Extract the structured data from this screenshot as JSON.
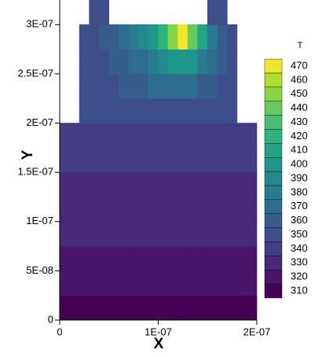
{
  "chart_data": {
    "type": "contour",
    "x_label": "X",
    "y_label": "Y",
    "colorbar_title": "T",
    "xlim": [
      0,
      2e-07
    ],
    "ylim": [
      0,
      3.25e-07
    ],
    "xticks": [
      0,
      {
        "value": 1e-07,
        "label": "1E-07"
      },
      {
        "value": 2e-07,
        "label": "2E-07"
      }
    ],
    "yticks": [
      0,
      {
        "value": 5e-08,
        "label": "5E-08"
      },
      {
        "value": 1e-07,
        "label": "1E-07"
      },
      {
        "value": 1.5e-07,
        "label": "1.5E-07"
      },
      {
        "value": 2e-07,
        "label": "2E-07"
      },
      {
        "value": 2.5e-07,
        "label": "2.5E-07"
      },
      {
        "value": 3e-07,
        "label": "3E-07"
      }
    ],
    "levels": [
      310,
      320,
      330,
      340,
      350,
      360,
      370,
      380,
      390,
      400,
      410,
      420,
      430,
      440,
      450,
      460,
      470
    ],
    "colors": [
      "#440154",
      "#481769",
      "#472a7a",
      "#433d84",
      "#3d4e8a",
      "#355e8d",
      "#2e6d8e",
      "#297b8e",
      "#23898e",
      "#1f978b",
      "#21a585",
      "#2eb37c",
      "#46c06f",
      "#65cb5e",
      "#89d548",
      "#b0dd2f",
      "#f2e62a"
    ],
    "x_edges": [
      0,
      1e-08,
      2e-08,
      3e-08,
      4e-08,
      5e-08,
      6e-08,
      7e-08,
      8e-08,
      9e-08,
      1e-07,
      1.1e-07,
      1.2e-07,
      1.3e-07,
      1.4e-07,
      1.5e-07,
      1.6e-07,
      1.7e-07,
      1.8e-07,
      1.9e-07,
      2e-07
    ],
    "y_edges": [
      0,
      2.5e-08,
      5e-08,
      7.5e-08,
      1e-07,
      1.25e-07,
      1.5e-07,
      1.75e-07,
      2e-07,
      2.25e-07,
      2.5e-07,
      2.75e-07,
      3e-07,
      3.25e-07
    ],
    "z": [
      [
        312,
        312,
        312,
        312,
        312,
        312,
        312,
        312,
        312,
        312,
        312,
        312,
        312,
        312,
        312,
        312,
        312,
        312,
        312,
        312
      ],
      [
        320,
        320,
        320,
        320,
        320,
        320,
        320,
        320,
        320,
        320,
        320,
        320,
        320,
        320,
        320,
        320,
        320,
        320,
        320,
        320
      ],
      [
        322,
        322,
        322,
        322,
        322,
        322,
        322,
        322,
        322,
        322,
        322,
        322,
        322,
        322,
        322,
        322,
        322,
        322,
        322,
        322
      ],
      [
        328,
        328,
        328,
        328,
        328,
        328,
        328,
        328,
        328,
        328,
        328,
        328,
        328,
        328,
        328,
        328,
        328,
        328,
        328,
        328
      ],
      [
        330,
        330,
        330,
        330,
        330,
        330,
        330,
        330,
        330,
        330,
        330,
        330,
        330,
        330,
        330,
        330,
        330,
        330,
        330,
        330
      ],
      [
        334,
        334,
        334,
        334,
        334,
        334,
        334,
        334,
        334,
        334,
        334,
        334,
        334,
        334,
        334,
        334,
        334,
        334,
        334,
        334
      ],
      [
        340,
        340,
        340,
        340,
        340,
        340,
        340,
        340,
        340,
        340,
        340,
        340,
        340,
        340,
        340,
        340,
        340,
        340,
        340,
        340
      ],
      [
        340,
        340,
        342,
        342,
        342,
        343,
        343,
        344,
        344,
        344,
        344,
        344,
        344,
        343,
        343,
        342,
        342,
        342,
        340,
        340
      ],
      [
        null,
        null,
        345,
        345,
        346,
        346,
        346,
        347,
        347,
        348,
        348,
        348,
        348,
        347,
        347,
        346,
        346,
        345,
        null,
        null
      ],
      [
        null,
        null,
        345,
        350,
        350,
        350,
        355,
        355,
        360,
        365,
        370,
        370,
        370,
        365,
        360,
        355,
        350,
        345,
        null,
        null
      ],
      [
        null,
        null,
        350,
        350,
        350,
        355,
        360,
        365,
        370,
        380,
        390,
        400,
        400,
        395,
        380,
        365,
        355,
        350,
        null,
        null
      ],
      [
        null,
        null,
        350,
        350,
        355,
        360,
        365,
        375,
        385,
        400,
        420,
        450,
        465,
        440,
        410,
        380,
        360,
        350,
        null,
        null
      ],
      [
        null,
        null,
        null,
        345,
        345,
        null,
        null,
        null,
        null,
        null,
        null,
        null,
        null,
        null,
        null,
        345,
        345,
        null,
        null,
        null
      ]
    ]
  }
}
